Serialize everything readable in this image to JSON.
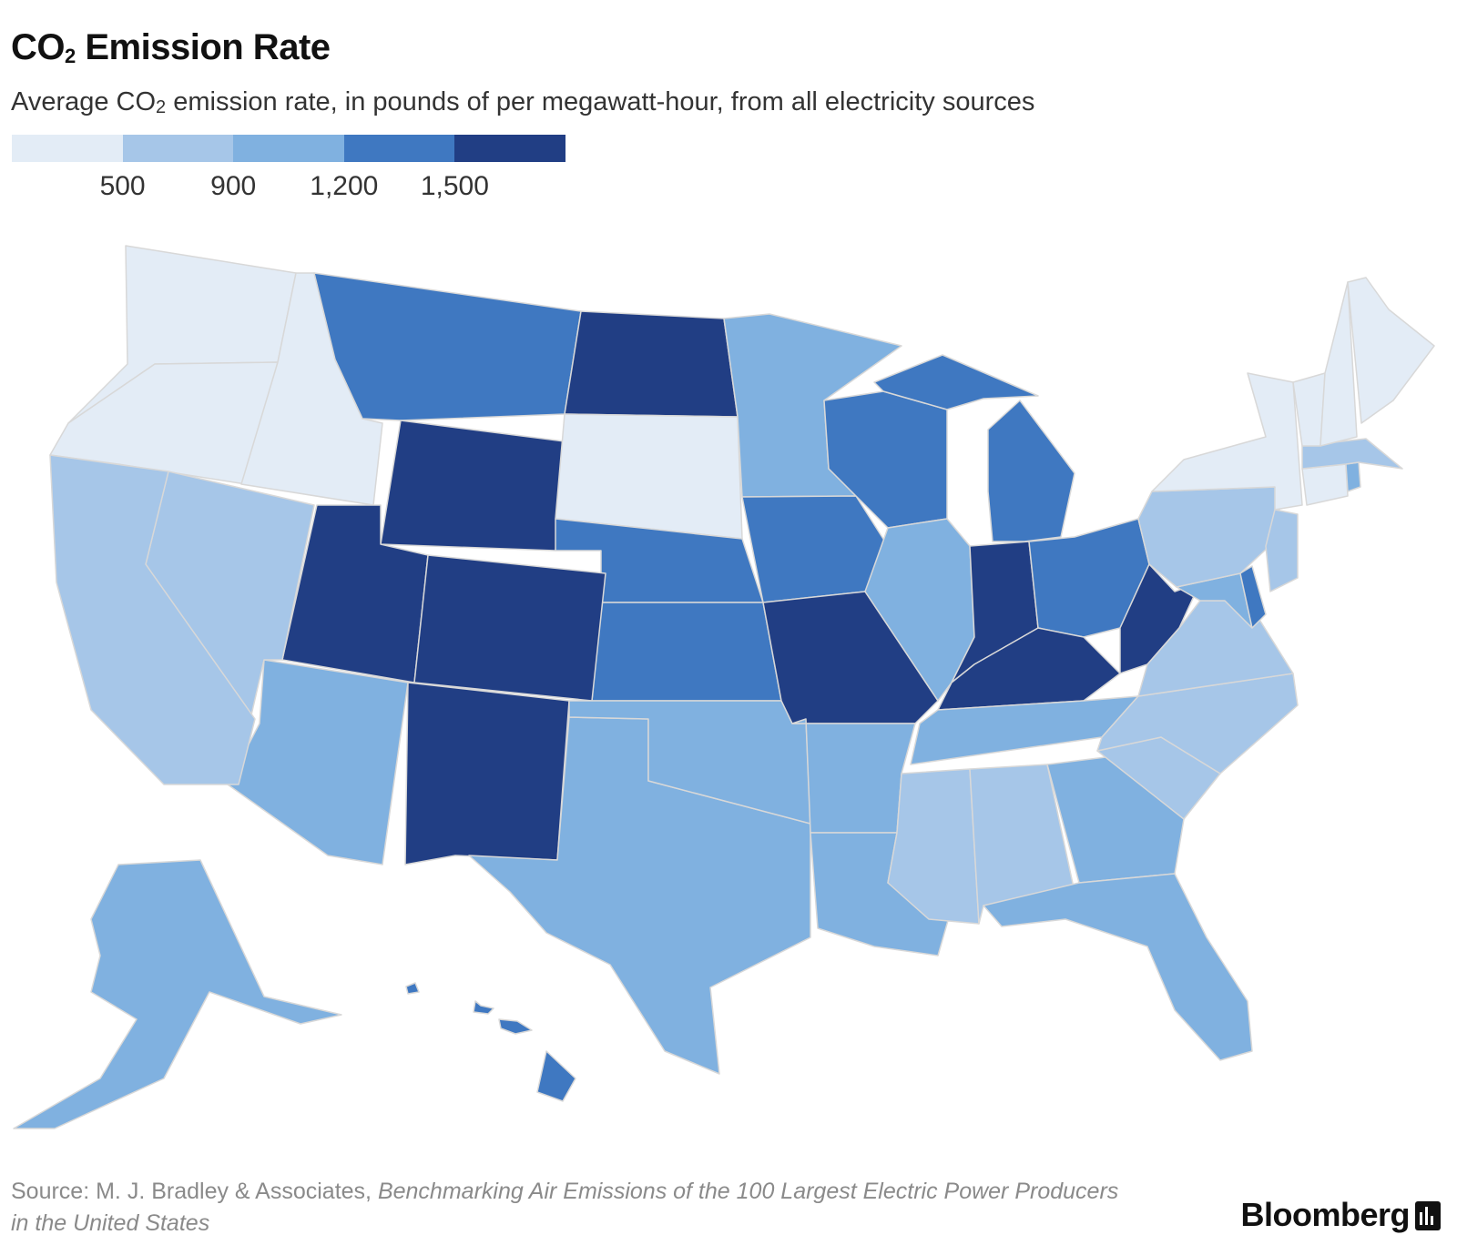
{
  "title": {
    "main": "CO",
    "sub": "2",
    "rest": " Emission Rate"
  },
  "subtitle": {
    "pre": "Average CO",
    "sub": "2",
    "post": " emission rate, in pounds of per megawatt-hour, from all electricity sources"
  },
  "legend": {
    "colors": [
      "#e3ecf6",
      "#a6c6e8",
      "#80b1e0",
      "#3f78c1",
      "#213e84"
    ],
    "labels": [
      "500",
      "900",
      "1,200",
      "1,500"
    ]
  },
  "source": {
    "prefix": "Source: M. J. Bradley & Associates, ",
    "report": "Benchmarking Air Emissions of the 100 Largest Electric Power Producers in the United States"
  },
  "brand": "Bloomberg",
  "map_data": {
    "type": "choropleth",
    "breaks": [
      500,
      900,
      1200,
      1500
    ],
    "states": [
      {
        "name": "Washington",
        "class": 0
      },
      {
        "name": "Oregon",
        "class": 0
      },
      {
        "name": "Idaho",
        "class": 0
      },
      {
        "name": "South Dakota",
        "class": 0
      },
      {
        "name": "New York",
        "class": 0
      },
      {
        "name": "Vermont",
        "class": 0
      },
      {
        "name": "New Hampshire",
        "class": 0
      },
      {
        "name": "Maine",
        "class": 0
      },
      {
        "name": "Connecticut",
        "class": 0
      },
      {
        "name": "California",
        "class": 1
      },
      {
        "name": "Nevada",
        "class": 1
      },
      {
        "name": "Virginia",
        "class": 1
      },
      {
        "name": "North Carolina",
        "class": 1
      },
      {
        "name": "South Carolina",
        "class": 1
      },
      {
        "name": "Mississippi",
        "class": 1
      },
      {
        "name": "Alabama",
        "class": 1
      },
      {
        "name": "Pennsylvania",
        "class": 1
      },
      {
        "name": "New Jersey",
        "class": 1
      },
      {
        "name": "Massachusetts",
        "class": 1
      },
      {
        "name": "Rhode Island",
        "class": 2
      },
      {
        "name": "Arizona",
        "class": 2
      },
      {
        "name": "Texas",
        "class": 2
      },
      {
        "name": "Oklahoma",
        "class": 2
      },
      {
        "name": "Arkansas",
        "class": 2
      },
      {
        "name": "Louisiana",
        "class": 2
      },
      {
        "name": "Minnesota",
        "class": 2
      },
      {
        "name": "Illinois",
        "class": 2
      },
      {
        "name": "Tennessee",
        "class": 2
      },
      {
        "name": "Georgia",
        "class": 2
      },
      {
        "name": "Florida",
        "class": 2
      },
      {
        "name": "Alaska",
        "class": 2
      },
      {
        "name": "Maryland",
        "class": 2
      },
      {
        "name": "Montana",
        "class": 3
      },
      {
        "name": "Nebraska",
        "class": 3
      },
      {
        "name": "Kansas",
        "class": 3
      },
      {
        "name": "Iowa",
        "class": 3
      },
      {
        "name": "Wisconsin",
        "class": 3
      },
      {
        "name": "Michigan",
        "class": 3
      },
      {
        "name": "Ohio",
        "class": 3
      },
      {
        "name": "Hawaii",
        "class": 3
      },
      {
        "name": "Delaware",
        "class": 3
      },
      {
        "name": "North Dakota",
        "class": 4
      },
      {
        "name": "Wyoming",
        "class": 4
      },
      {
        "name": "Utah",
        "class": 4
      },
      {
        "name": "Colorado",
        "class": 4
      },
      {
        "name": "New Mexico",
        "class": 4
      },
      {
        "name": "Missouri",
        "class": 4
      },
      {
        "name": "Indiana",
        "class": 4
      },
      {
        "name": "Kentucky",
        "class": 4
      },
      {
        "name": "West Virginia",
        "class": 4
      }
    ]
  }
}
